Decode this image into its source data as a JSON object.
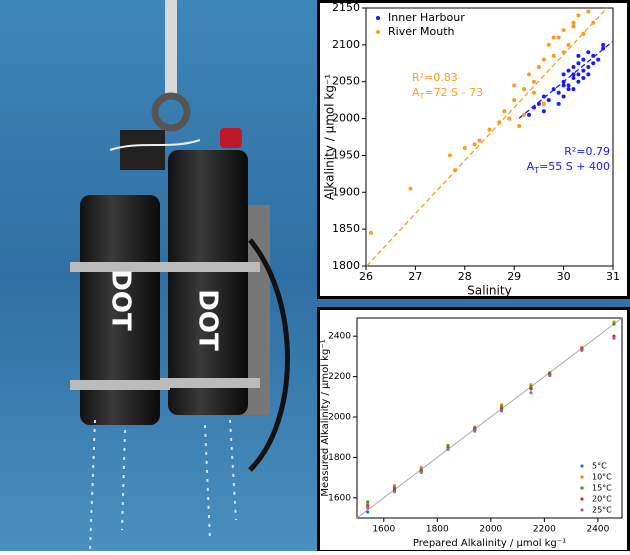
{
  "photo": {
    "labels": [
      "DOT",
      "DOT"
    ]
  },
  "chart_data": [
    {
      "type": "scatter",
      "xlabel": "Salinity",
      "ylabel": "Alkalinity / µmol kg⁻¹",
      "xlim": [
        26,
        31
      ],
      "ylim": [
        1800,
        2150
      ],
      "xticks": [
        26,
        27,
        28,
        29,
        30,
        31
      ],
      "yticks": [
        1800,
        1850,
        1900,
        1950,
        2000,
        2050,
        2100,
        2150
      ],
      "grid": false,
      "legend": "upper left",
      "series": [
        {
          "name": "Inner Harbour",
          "color": "#1a1aff",
          "x": [
            29.3,
            29.4,
            29.5,
            29.6,
            29.7,
            29.8,
            29.9,
            30.0,
            30.0,
            30.1,
            30.1,
            30.2,
            30.2,
            30.2,
            30.3,
            30.3,
            30.3,
            30.4,
            30.4,
            30.5,
            30.5,
            30.6,
            30.6,
            30.7,
            30.8,
            29.9,
            30.0,
            30.2,
            30.4,
            30.1,
            29.6,
            30.3,
            30.5,
            30.0,
            30.8
          ],
          "values": [
            2005,
            2015,
            2020,
            2030,
            2025,
            2040,
            2035,
            2050,
            2060,
            2045,
            2065,
            2055,
            2070,
            2040,
            2060,
            2075,
            2050,
            2065,
            2080,
            2070,
            2090,
            2075,
            2085,
            2080,
            2095,
            2020,
            2030,
            2060,
            2055,
            2040,
            2010,
            2085,
            2060,
            2045,
            2100
          ],
          "fit": {
            "slope": 55,
            "intercept": 400
          },
          "r2_label": "R²=0.79",
          "fit_label": [
            "A",
            "T",
            "=55 S + 400"
          ]
        },
        {
          "name": "River Mouth",
          "color": "#ff9a1f",
          "x": [
            26.1,
            26.9,
            27.7,
            27.8,
            28.0,
            28.2,
            28.3,
            28.5,
            28.7,
            28.8,
            29.0,
            29.1,
            29.2,
            29.3,
            29.4,
            29.5,
            29.6,
            29.7,
            29.8,
            29.9,
            30.0,
            30.1,
            30.2,
            30.3,
            29.4,
            29.6,
            29.8,
            30.0,
            30.4,
            30.6,
            29.2,
            28.9,
            29.0,
            30.5,
            30.2
          ],
          "values": [
            1845,
            1905,
            1950,
            1930,
            1960,
            1965,
            1970,
            1985,
            1995,
            2010,
            2025,
            1990,
            2040,
            2060,
            2050,
            2070,
            2080,
            2100,
            2085,
            2110,
            2120,
            2100,
            2130,
            2140,
            2035,
            2020,
            2110,
            2090,
            2115,
            2130,
            2005,
            2000,
            2045,
            2145,
            2125
          ],
          "fit": {
            "slope": 72,
            "intercept": -73
          },
          "r2_label": "R²=0.83",
          "fit_label": [
            "A",
            "T",
            "=72 S - 73"
          ]
        }
      ]
    },
    {
      "type": "scatter",
      "xlabel": "Prepared Alkalinity / µmol kg⁻¹",
      "ylabel": "Measured Alkalinity / µmol kg⁻¹",
      "xlim": [
        1500,
        2490
      ],
      "ylim": [
        1500,
        2490
      ],
      "xticks": [
        1600,
        1800,
        2000,
        2200,
        2400
      ],
      "yticks": [
        1600,
        1800,
        2000,
        2200,
        2400
      ],
      "grid": false,
      "legend": "lower right",
      "diagonal": true,
      "series": [
        {
          "name": "5°C",
          "color": "#1f77b4",
          "x": [
            1540,
            1640,
            1740,
            1840,
            1940,
            2040,
            2150,
            2220,
            2340,
            2460
          ],
          "values": [
            1530,
            1650,
            1740,
            1850,
            1940,
            2040,
            2140,
            2210,
            2340,
            2460
          ]
        },
        {
          "name": "10°C",
          "color": "#ff7f0e",
          "x": [
            1540,
            1640,
            1740,
            1840,
            1940,
            2040,
            2150,
            2220,
            2340,
            2460
          ],
          "values": [
            1570,
            1660,
            1750,
            1860,
            1950,
            2060,
            2160,
            2220,
            2345,
            2470
          ]
        },
        {
          "name": "15°C",
          "color": "#2ca02c",
          "x": [
            1540,
            1640,
            1740,
            1840,
            1940,
            2040,
            2150,
            2220,
            2340,
            2460
          ],
          "values": [
            1580,
            1650,
            1740,
            1855,
            1945,
            2050,
            2150,
            2215,
            2340,
            2460
          ]
        },
        {
          "name": "20°C",
          "color": "#d62728",
          "x": [
            1540,
            1640,
            1740,
            1840,
            1940,
            2040,
            2150,
            2220,
            2340,
            2460
          ],
          "values": [
            1560,
            1640,
            1730,
            1845,
            1935,
            2040,
            2140,
            2210,
            2335,
            2400
          ]
        },
        {
          "name": "25°C",
          "color": "#9467bd",
          "x": [
            1540,
            1640,
            1740,
            1840,
            1940,
            2040,
            2150,
            2220,
            2340,
            2460
          ],
          "values": [
            1550,
            1630,
            1725,
            1840,
            1930,
            2030,
            2120,
            2205,
            2330,
            2390
          ]
        }
      ]
    }
  ]
}
